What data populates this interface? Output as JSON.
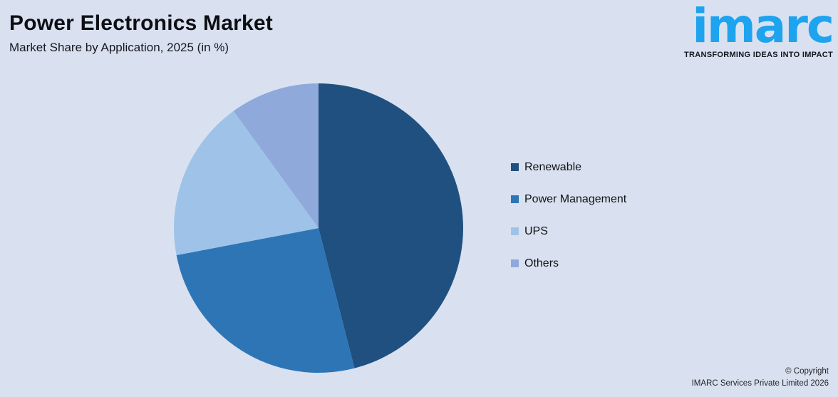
{
  "page": {
    "background_color": "#D9E1F0"
  },
  "header": {
    "title": "Power Electronics Market",
    "subtitle": "Market Share by Application, 2025 (in %)"
  },
  "logo": {
    "wordmark": "imarc",
    "tagline": "TRANSFORMING IDEAS INTO IMPACT",
    "brand_color": "#1EA3EF"
  },
  "chart_data": {
    "type": "pie",
    "title": "Power Electronics Market",
    "subtitle": "Market Share by Application, 2025 (in %)",
    "unit": "%",
    "categories": [
      "Renewable",
      "Power Management",
      "UPS",
      "Others"
    ],
    "values": [
      46,
      26,
      18,
      10
    ],
    "colors": [
      "#1F5080",
      "#2E75B6",
      "#9FC3E8",
      "#8FA9DA"
    ],
    "start_angle_deg": 0,
    "direction": "clockwise",
    "legend_position": "right",
    "data_labels_shown": false
  },
  "footer": {
    "copyright_line1": "© Copyright",
    "copyright_line2": "IMARC Services Private Limited 2026"
  }
}
